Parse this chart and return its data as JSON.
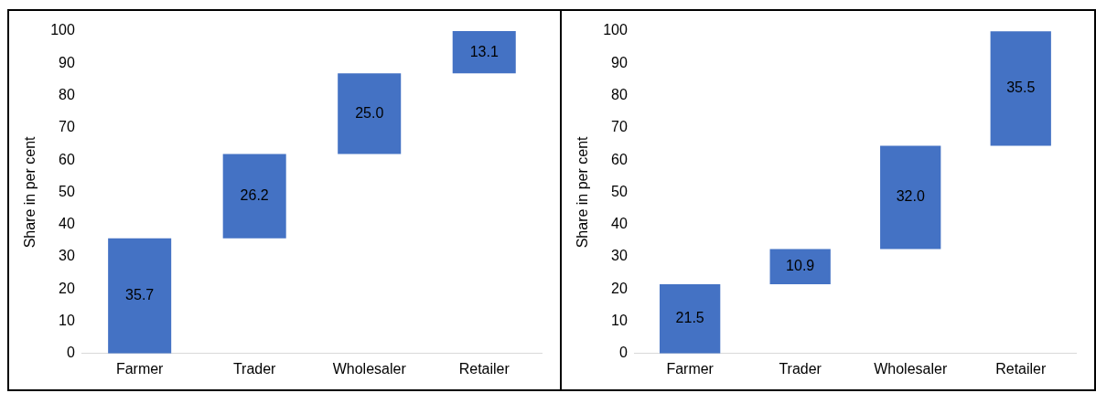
{
  "chart_data": [
    {
      "type": "bar",
      "ylabel": "Share in per cent",
      "categories": [
        "Farmer",
        "Trader",
        "Wholesaler",
        "Retailer"
      ],
      "values": [
        35.7,
        26.2,
        25.0,
        13.1
      ],
      "base": [
        0,
        35.7,
        61.9,
        86.9
      ],
      "value_labels": [
        "35.7",
        "26.2",
        "25.0",
        "13.1"
      ],
      "color": "#4472c4",
      "ylim": [
        0,
        100
      ],
      "yticks": [
        0,
        10,
        20,
        30,
        40,
        50,
        60,
        70,
        80,
        90,
        100
      ],
      "grid": false,
      "legend": false
    },
    {
      "type": "bar",
      "ylabel": "Share in per cent",
      "categories": [
        "Farmer",
        "Trader",
        "Wholesaler",
        "Retailer"
      ],
      "values": [
        21.5,
        10.9,
        32.0,
        35.5
      ],
      "base": [
        0,
        21.5,
        32.4,
        64.4
      ],
      "value_labels": [
        "21.5",
        "10.9",
        "32.0",
        "35.5"
      ],
      "color": "#4472c4",
      "ylim": [
        0,
        100
      ],
      "yticks": [
        0,
        10,
        20,
        30,
        40,
        50,
        60,
        70,
        80,
        90,
        100
      ],
      "grid": false,
      "legend": false
    }
  ]
}
